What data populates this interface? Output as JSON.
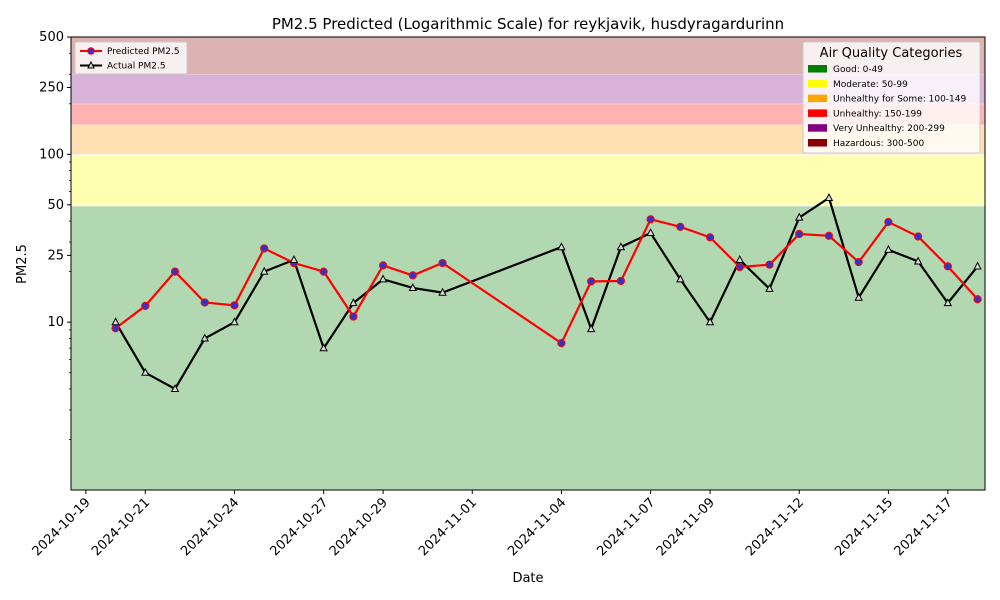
{
  "chart_data": {
    "type": "line",
    "title": "PM2.5 Predicted (Logarithmic Scale) for reykjavik, husdyragardurinn",
    "xlabel": "Date",
    "ylabel": "PM2.5",
    "yscale": "log",
    "ylim": [
      1,
      500
    ],
    "xlim": [
      "2024-10-18T12:00",
      "2024-11-18T06:00"
    ],
    "grid": false,
    "y_ticks": [
      {
        "value": 10,
        "label": "10"
      },
      {
        "value": 25,
        "label": "25"
      },
      {
        "value": 50,
        "label": "50"
      },
      {
        "value": 100,
        "label": "100"
      },
      {
        "value": 250,
        "label": "250"
      },
      {
        "value": 500,
        "label": "500"
      }
    ],
    "x_ticks": [
      {
        "date": "2024-10-19",
        "label": "2024-10-19"
      },
      {
        "date": "2024-10-21",
        "label": "2024-10-21"
      },
      {
        "date": "2024-10-24",
        "label": "2024-10-24"
      },
      {
        "date": "2024-10-27",
        "label": "2024-10-27"
      },
      {
        "date": "2024-10-29",
        "label": "2024-10-29"
      },
      {
        "date": "2024-11-01",
        "label": "2024-11-01"
      },
      {
        "date": "2024-11-04",
        "label": "2024-11-04"
      },
      {
        "date": "2024-11-07",
        "label": "2024-11-07"
      },
      {
        "date": "2024-11-09",
        "label": "2024-11-09"
      },
      {
        "date": "2024-11-12",
        "label": "2024-11-12"
      },
      {
        "date": "2024-11-15",
        "label": "2024-11-15"
      },
      {
        "date": "2024-11-17",
        "label": "2024-11-17"
      }
    ],
    "x_dates": [
      "2024-10-20",
      "2024-10-21",
      "2024-10-22",
      "2024-10-23",
      "2024-10-24",
      "2024-10-25",
      "2024-10-26",
      "2024-10-27",
      "2024-10-28",
      "2024-10-29",
      "2024-10-30",
      "2024-10-31",
      "2024-11-04",
      "2024-11-05",
      "2024-11-06",
      "2024-11-07",
      "2024-11-08",
      "2024-11-09",
      "2024-11-10",
      "2024-11-11",
      "2024-11-12",
      "2024-11-13",
      "2024-11-14",
      "2024-11-15",
      "2024-11-16",
      "2024-11-17",
      "2024-11-18"
    ],
    "series": [
      {
        "name": "Predicted PM2.5",
        "color": "#ff0000",
        "marker_fill": "#3333cc",
        "values": [
          9.2,
          12.5,
          20,
          13.1,
          12.6,
          27.5,
          22.5,
          20,
          10.8,
          21.8,
          19,
          22.5,
          7.5,
          17.5,
          17.6,
          41,
          37,
          32,
          21.3,
          22,
          33.5,
          32.7,
          22.8,
          39.5,
          32.4,
          21.5,
          13.7
        ]
      },
      {
        "name": "Actual PM2.5",
        "color": "#000000",
        "marker_fill": "#d9d9d9",
        "values": [
          10,
          5,
          4,
          8,
          10,
          20,
          23.5,
          7,
          13,
          18,
          16,
          15,
          28,
          9.1,
          28,
          34,
          18,
          10,
          23.5,
          15.8,
          42,
          55,
          14,
          27,
          23,
          13,
          21.5
        ]
      }
    ],
    "legend": {
      "placement": "upper left"
    },
    "categories": {
      "title": "Air Quality Categories",
      "placement": "upper right",
      "items": [
        {
          "label": "Good: 0-49",
          "range": [
            0,
            49
          ],
          "color": "#008000",
          "band_color": "#b2d8b2"
        },
        {
          "label": "Moderate: 50-99",
          "range": [
            50,
            99
          ],
          "color": "#ffff00",
          "band_color": "#ffffb2"
        },
        {
          "label": "Unhealthy for Some: 100-149",
          "range": [
            100,
            149
          ],
          "color": "#ffa500",
          "band_color": "#ffe0b2"
        },
        {
          "label": "Unhealthy: 150-199",
          "range": [
            150,
            199
          ],
          "color": "#ff0000",
          "band_color": "#ffb2b2"
        },
        {
          "label": "Very Unhealthy: 200-299",
          "range": [
            200,
            299
          ],
          "color": "#800080",
          "band_color": "#d9b2d9"
        },
        {
          "label": "Hazardous: 300-500",
          "range": [
            300,
            500
          ],
          "color": "#8b0000",
          "band_color": "#dcb2b2"
        }
      ]
    }
  }
}
